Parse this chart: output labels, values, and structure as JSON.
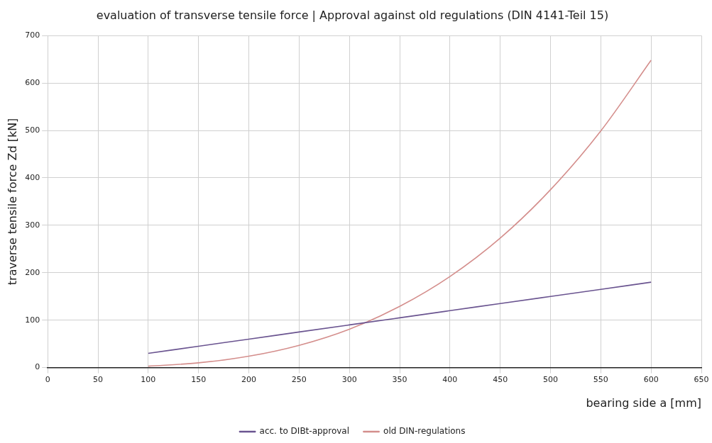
{
  "chart_data": {
    "type": "line",
    "title": "evaluation of transverse tensile force | Approval against old regulations (DIN 4141-Teil 15)",
    "xlabel": "bearing side a [mm]",
    "ylabel": "traverse tensile force Zd [kN]",
    "x": [
      100,
      150,
      200,
      250,
      300,
      350,
      400,
      450,
      500,
      550,
      600
    ],
    "series": [
      {
        "name": "acc. to DIBt-approval",
        "color": "#6a5490",
        "values": [
          30,
          45,
          60,
          75,
          90,
          105,
          120,
          135,
          150,
          165,
          180
        ]
      },
      {
        "name": "old DIN-regulations",
        "color": "#d48e8c",
        "values": [
          3,
          10,
          24,
          47,
          81,
          129,
          192,
          273,
          375,
          499,
          648
        ]
      }
    ],
    "xlim": [
      0,
      650
    ],
    "xticks": [
      0,
      50,
      100,
      150,
      200,
      250,
      300,
      350,
      400,
      450,
      500,
      550,
      600,
      650
    ],
    "ylim": [
      0,
      700
    ],
    "yticks": [
      0,
      100,
      200,
      300,
      400,
      500,
      600,
      700
    ],
    "grid": true,
    "legend": "bottom",
    "marker": "none",
    "line_style": "solid"
  }
}
